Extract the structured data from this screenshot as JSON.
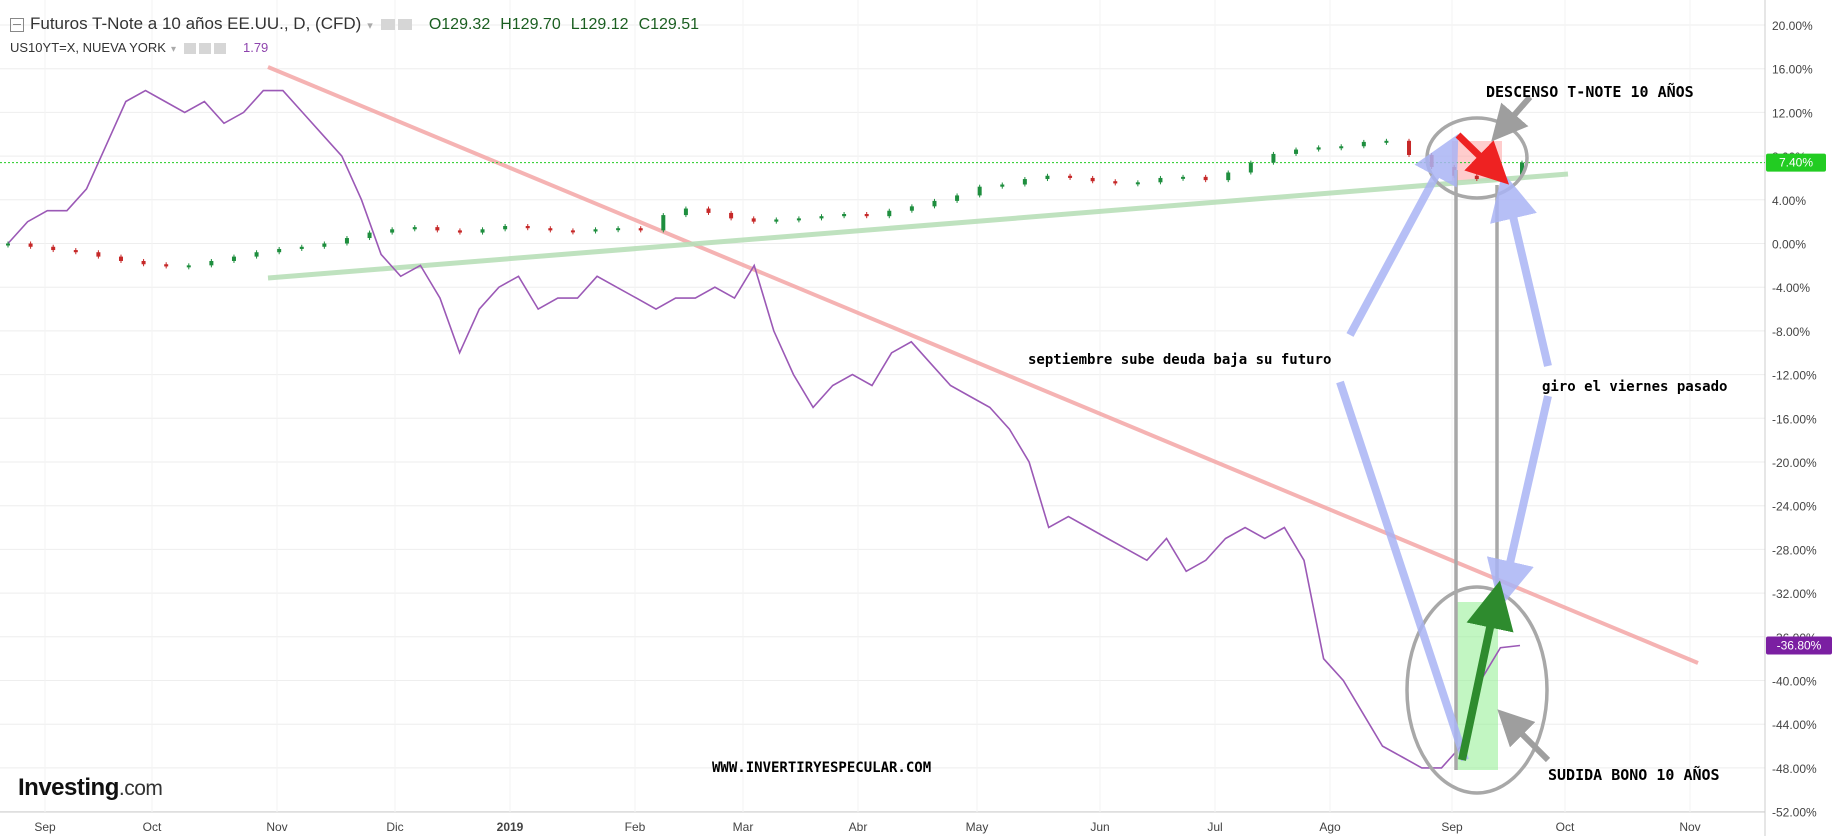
{
  "header": {
    "title": "Futuros T-Note a 10 años EE.UU., D, (CFD)",
    "open": "O129.32",
    "high": "H129.70",
    "low": "L129.12",
    "close": "C129.51"
  },
  "subheader": {
    "symbol": "US10YT=X, NUEVA YORK",
    "value": "1.79"
  },
  "logo": {
    "brand": "Investing",
    "suffix": ".com"
  },
  "annotations": {
    "descenso": "DESCENSO T-NOTE 10 AÑOS",
    "septiembre": "septiembre sube deuda baja su futuro",
    "giro": "giro el viernes pasado",
    "web": "WWW.INVERTIRYESPECULAR.COM",
    "subida": "SUDIDA BONO 10 AÑOS"
  },
  "colors": {
    "up": "#1e8e3e",
    "down": "#c62828",
    "yield_line": "#9b59b6",
    "resistance": "#f4a6a6",
    "support": "#b9dfb9",
    "arrow_blue": "#aab4f5",
    "badge_green": "#22cc22",
    "badge_purple": "#7b1fa2"
  },
  "chart_data": {
    "type": "line",
    "x_ticks": [
      "Sep",
      "Oct",
      "Nov",
      "Dic",
      "2019",
      "Feb",
      "Mar",
      "Abr",
      "May",
      "Jun",
      "Jul",
      "Ago",
      "Sep",
      "Oct",
      "Nov"
    ],
    "y_ticks": [
      "20.00%",
      "16.00%",
      "12.00%",
      "8.00%",
      "4.00%",
      "0.00%",
      "-4.00%",
      "-8.00%",
      "-12.00%",
      "-16.00%",
      "-20.00%",
      "-24.00%",
      "-28.00%",
      "-32.00%",
      "-36.00%",
      "-40.00%",
      "-44.00%",
      "-48.00%",
      "-52.00%"
    ],
    "ylim": [
      -52,
      20
    ],
    "price_label": "7.40%",
    "yield_label": "-36.80%",
    "series": [
      {
        "name": "US10YT=X",
        "values": [
          0,
          2,
          3,
          3,
          5,
          9,
          13,
          14,
          13,
          12,
          13,
          11,
          12,
          14,
          14,
          12,
          10,
          8,
          4,
          -1,
          -3,
          -2,
          -5,
          -10,
          -6,
          -4,
          -3,
          -6,
          -5,
          -5,
          -3,
          -4,
          -5,
          -6,
          -5,
          -5,
          -4,
          -5,
          -2,
          -8,
          -12,
          -15,
          -13,
          -12,
          -13,
          -10,
          -9,
          -11,
          -13,
          -14,
          -15,
          -17,
          -20,
          -26,
          -25,
          -26,
          -27,
          -28,
          -29,
          -27,
          -30,
          -29,
          -27,
          -26,
          -27,
          -26,
          -29,
          -38,
          -40,
          -43,
          -46,
          -47,
          -48,
          -48,
          -46,
          -40,
          -37,
          -36.8
        ]
      },
      {
        "name": "Futuros T-Note a 10 años EE.UU., D, (CFD)",
        "values": [
          0,
          -0.3,
          -0.6,
          -0.8,
          -1.2,
          -1.6,
          -1.9,
          -2.1,
          -2.0,
          -1.6,
          -1.2,
          -0.8,
          -0.5,
          -0.3,
          0,
          0.5,
          1.0,
          1.3,
          1.5,
          1.2,
          1.0,
          1.3,
          1.6,
          1.4,
          1.2,
          1.1,
          1.3,
          1.4,
          1.2,
          2.6,
          3.2,
          2.8,
          2.3,
          2.0,
          2.2,
          2.3,
          2.5,
          2.7,
          2.5,
          3.0,
          3.4,
          3.9,
          4.4,
          5.2,
          5.4,
          5.9,
          6.2,
          6.0,
          5.7,
          5.5,
          5.6,
          6.0,
          6.1,
          5.8,
          6.5,
          7.4,
          8.2,
          8.6,
          8.8,
          8.9,
          9.3,
          9.4,
          8.1,
          7.0,
          6.2,
          5.9,
          6.3,
          7.4
        ]
      }
    ]
  }
}
